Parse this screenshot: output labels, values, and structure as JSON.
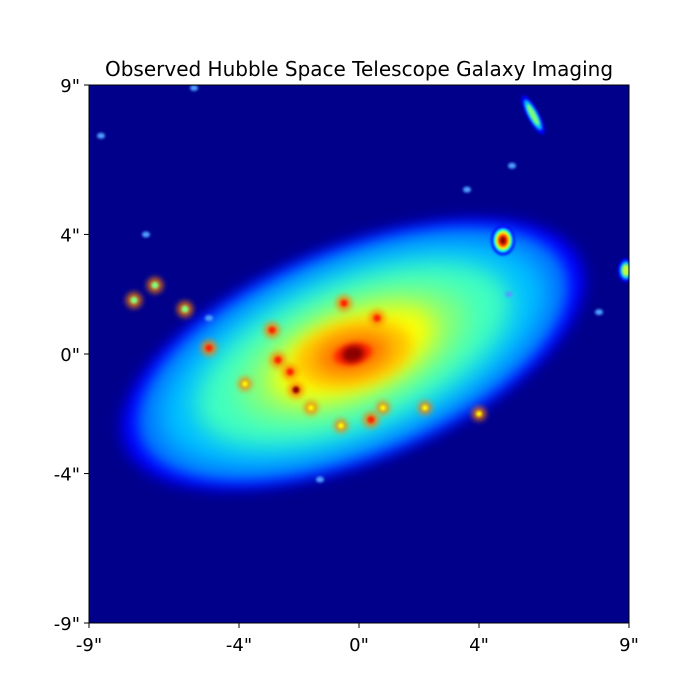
{
  "chart_data": {
    "type": "heatmap",
    "title": "Observed Hubble Space Telescope Galaxy Imaging",
    "xlabel": "",
    "ylabel": "",
    "x_ticks": [
      {
        "value": -9,
        "label": "-9\""
      },
      {
        "value": -4,
        "label": "-4\""
      },
      {
        "value": 0,
        "label": "0\""
      },
      {
        "value": 4,
        "label": "4\""
      },
      {
        "value": 9,
        "label": "9\""
      }
    ],
    "y_ticks": [
      {
        "value": -9,
        "label": "-9\""
      },
      {
        "value": -4,
        "label": "-4\""
      },
      {
        "value": 0,
        "label": "0\""
      },
      {
        "value": 4,
        "label": "4\""
      },
      {
        "value": 9,
        "label": "9\""
      }
    ],
    "xlim": [
      -9,
      9
    ],
    "ylim": [
      -9,
      9
    ],
    "colormap": "jet",
    "colors": {
      "background": "#00008b",
      "low": "#0000ff",
      "mid_low": "#00bfff",
      "mid": "#7fff7f",
      "mid_high": "#ffff00",
      "high": "#ff7f00",
      "peak": "#8b0000"
    },
    "galaxy": {
      "center": [
        -0.2,
        0.0
      ],
      "semi_major": 8.2,
      "semi_minor": 3.6,
      "position_angle_deg": -22
    },
    "sources": [
      {
        "x": 4.8,
        "y": 3.8,
        "level": "high"
      },
      {
        "x": 5.8,
        "y": 8.0,
        "level": "mid"
      },
      {
        "x": 8.9,
        "y": 2.8,
        "level": "mid"
      },
      {
        "x": -5.5,
        "y": 8.9,
        "level": "low"
      },
      {
        "x": -8.6,
        "y": 7.3,
        "level": "low"
      },
      {
        "x": 5.1,
        "y": 6.3,
        "level": "low"
      },
      {
        "x": 3.6,
        "y": 5.5,
        "level": "low"
      },
      {
        "x": 5.0,
        "y": 2.0,
        "level": "low"
      },
      {
        "x": 8.0,
        "y": 1.4,
        "level": "low"
      },
      {
        "x": -7.1,
        "y": 4.0,
        "level": "low"
      },
      {
        "x": -5.0,
        "y": 1.2,
        "level": "low"
      },
      {
        "x": -1.3,
        "y": -4.2,
        "level": "low"
      }
    ],
    "knots": [
      {
        "x": -5.0,
        "y": 0.2,
        "level": "high"
      },
      {
        "x": -2.7,
        "y": -0.2,
        "level": "high"
      },
      {
        "x": -2.3,
        "y": -0.6,
        "level": "high"
      },
      {
        "x": -2.1,
        "y": -1.2,
        "level": "peak"
      },
      {
        "x": -2.9,
        "y": 0.8,
        "level": "high"
      },
      {
        "x": -0.5,
        "y": 1.7,
        "level": "high"
      },
      {
        "x": 0.6,
        "y": 1.2,
        "level": "high"
      },
      {
        "x": 0.4,
        "y": -2.2,
        "level": "high"
      },
      {
        "x": 0.8,
        "y": -1.8,
        "level": "mid_high"
      },
      {
        "x": -0.6,
        "y": -2.4,
        "level": "mid_high"
      },
      {
        "x": -1.6,
        "y": -1.8,
        "level": "mid_high"
      },
      {
        "x": -3.8,
        "y": -1.0,
        "level": "mid_high"
      },
      {
        "x": 4.0,
        "y": -2.0,
        "level": "mid_high"
      },
      {
        "x": 2.2,
        "y": -1.8,
        "level": "mid_high"
      },
      {
        "x": -6.8,
        "y": 2.3,
        "level": "mid"
      },
      {
        "x": -7.5,
        "y": 1.8,
        "level": "mid"
      },
      {
        "x": -5.8,
        "y": 1.5,
        "level": "mid"
      }
    ]
  }
}
